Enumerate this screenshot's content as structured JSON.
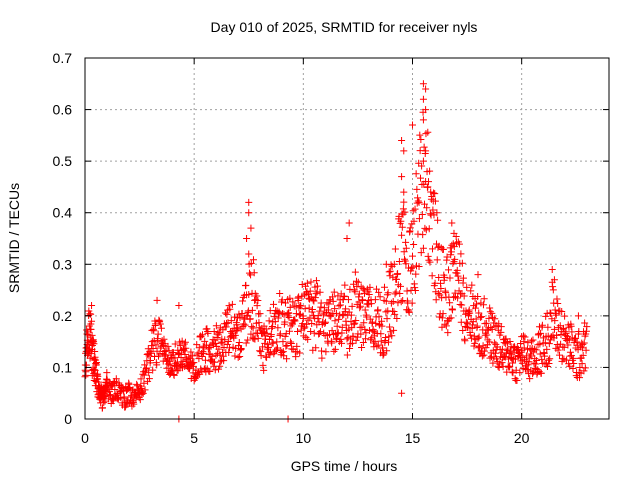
{
  "chart_data": {
    "type": "scatter",
    "title": "Day 010 of 2025, SRMTID for receiver nyls",
    "xlabel": "GPS time / hours",
    "ylabel": "SRMTID / TECUs",
    "xlim": [
      0,
      24
    ],
    "ylim": [
      0,
      0.7
    ],
    "x_ticks": [
      0,
      5,
      10,
      15,
      20
    ],
    "x_tick_labels": [
      "0",
      "5",
      "10",
      "15",
      "20"
    ],
    "y_ticks": [
      0,
      0.1,
      0.2,
      0.3,
      0.4,
      0.5,
      0.6,
      0.7
    ],
    "y_tick_labels": [
      "0",
      "0.1",
      "0.2",
      "0.3",
      "0.4",
      "0.5",
      "0.6",
      "0.7"
    ],
    "grid": true,
    "marker": "+",
    "marker_color": "#ff0000",
    "series": [
      {
        "name": "SRMTID",
        "note": "representative samples of the dense point cloud, read from the plot envelope",
        "x": [
          0.0,
          0.1,
          0.2,
          0.3,
          0.4,
          0.5,
          0.6,
          0.7,
          0.8,
          0.9,
          1.0,
          1.2,
          1.4,
          1.6,
          1.8,
          2.0,
          2.2,
          2.4,
          2.6,
          2.8,
          3.0,
          3.2,
          3.4,
          3.6,
          3.8,
          4.0,
          4.2,
          4.4,
          4.6,
          4.8,
          5.0,
          5.2,
          5.4,
          5.6,
          5.8,
          6.0,
          6.2,
          6.4,
          6.6,
          6.8,
          7.0,
          7.2,
          7.4,
          7.6,
          7.8,
          8.0,
          8.2,
          8.4,
          8.6,
          8.8,
          9.0,
          9.2,
          9.4,
          9.6,
          9.8,
          10.0,
          10.2,
          10.4,
          10.6,
          10.8,
          11.0,
          11.2,
          11.4,
          11.6,
          11.8,
          12.0,
          12.2,
          12.4,
          12.6,
          12.8,
          13.0,
          13.2,
          13.4,
          13.6,
          13.8,
          14.0,
          14.2,
          14.4,
          14.6,
          14.8,
          15.0,
          15.2,
          15.4,
          15.6,
          15.8,
          16.0,
          16.2,
          16.4,
          16.6,
          16.8,
          17.0,
          17.2,
          17.4,
          17.6,
          17.8,
          18.0,
          18.2,
          18.4,
          18.6,
          18.8,
          19.0,
          19.2,
          19.4,
          19.6,
          19.8,
          20.0,
          20.2,
          20.4,
          20.6,
          20.8,
          21.0,
          21.2,
          21.4,
          21.6,
          21.8,
          22.0,
          22.2,
          22.4,
          22.6,
          22.8
        ],
        "y": [
          0.1,
          0.15,
          0.18,
          0.14,
          0.12,
          0.1,
          0.06,
          0.05,
          0.04,
          0.05,
          0.06,
          0.05,
          0.06,
          0.05,
          0.04,
          0.05,
          0.04,
          0.05,
          0.06,
          0.09,
          0.12,
          0.15,
          0.16,
          0.14,
          0.12,
          0.11,
          0.12,
          0.13,
          0.12,
          0.11,
          0.1,
          0.12,
          0.13,
          0.14,
          0.12,
          0.13,
          0.15,
          0.16,
          0.17,
          0.18,
          0.15,
          0.17,
          0.2,
          0.25,
          0.22,
          0.16,
          0.14,
          0.15,
          0.17,
          0.19,
          0.18,
          0.17,
          0.19,
          0.16,
          0.18,
          0.2,
          0.22,
          0.19,
          0.21,
          0.18,
          0.16,
          0.18,
          0.19,
          0.2,
          0.21,
          0.18,
          0.2,
          0.22,
          0.2,
          0.19,
          0.21,
          0.2,
          0.19,
          0.18,
          0.2,
          0.22,
          0.25,
          0.3,
          0.35,
          0.28,
          0.3,
          0.38,
          0.45,
          0.5,
          0.4,
          0.35,
          0.28,
          0.25,
          0.24,
          0.27,
          0.3,
          0.26,
          0.22,
          0.21,
          0.2,
          0.18,
          0.17,
          0.18,
          0.16,
          0.15,
          0.14,
          0.12,
          0.13,
          0.12,
          0.11,
          0.13,
          0.12,
          0.11,
          0.12,
          0.13,
          0.14,
          0.16,
          0.2,
          0.18,
          0.17,
          0.15,
          0.14,
          0.13,
          0.12,
          0.14
        ],
        "spread": [
          0.03,
          0.04,
          0.05,
          0.05,
          0.05,
          0.04,
          0.02,
          0.02,
          0.02,
          0.02,
          0.02,
          0.02,
          0.02,
          0.02,
          0.02,
          0.02,
          0.02,
          0.02,
          0.02,
          0.03,
          0.04,
          0.05,
          0.05,
          0.04,
          0.03,
          0.03,
          0.03,
          0.04,
          0.03,
          0.03,
          0.03,
          0.04,
          0.04,
          0.05,
          0.04,
          0.05,
          0.05,
          0.05,
          0.05,
          0.05,
          0.05,
          0.06,
          0.07,
          0.09,
          0.07,
          0.05,
          0.05,
          0.05,
          0.06,
          0.06,
          0.06,
          0.06,
          0.06,
          0.06,
          0.06,
          0.07,
          0.07,
          0.07,
          0.07,
          0.06,
          0.06,
          0.06,
          0.06,
          0.06,
          0.07,
          0.06,
          0.06,
          0.07,
          0.06,
          0.06,
          0.06,
          0.06,
          0.06,
          0.06,
          0.07,
          0.08,
          0.09,
          0.1,
          0.12,
          0.1,
          0.1,
          0.12,
          0.14,
          0.15,
          0.12,
          0.1,
          0.09,
          0.08,
          0.08,
          0.08,
          0.08,
          0.07,
          0.07,
          0.06,
          0.06,
          0.06,
          0.06,
          0.06,
          0.05,
          0.05,
          0.05,
          0.04,
          0.04,
          0.04,
          0.04,
          0.04,
          0.04,
          0.04,
          0.04,
          0.05,
          0.05,
          0.06,
          0.07,
          0.06,
          0.06,
          0.05,
          0.05,
          0.05,
          0.05,
          0.05
        ]
      }
    ],
    "outliers": [
      {
        "x": 0.3,
        "y": 0.22
      },
      {
        "x": 1.0,
        "y": 0.09
      },
      {
        "x": 3.3,
        "y": 0.23
      },
      {
        "x": 4.3,
        "y": 0.22
      },
      {
        "x": 4.3,
        "y": 0.0
      },
      {
        "x": 9.3,
        "y": 0.0
      },
      {
        "x": 7.5,
        "y": 0.42
      },
      {
        "x": 7.5,
        "y": 0.4
      },
      {
        "x": 7.6,
        "y": 0.37
      },
      {
        "x": 7.4,
        "y": 0.35
      },
      {
        "x": 7.5,
        "y": 0.32
      },
      {
        "x": 12.0,
        "y": 0.35
      },
      {
        "x": 12.1,
        "y": 0.38
      },
      {
        "x": 13.8,
        "y": 0.3
      },
      {
        "x": 14.5,
        "y": 0.05
      },
      {
        "x": 14.5,
        "y": 0.54
      },
      {
        "x": 14.6,
        "y": 0.52
      },
      {
        "x": 14.5,
        "y": 0.47
      },
      {
        "x": 14.6,
        "y": 0.44
      },
      {
        "x": 15.0,
        "y": 0.57
      },
      {
        "x": 15.5,
        "y": 0.65
      },
      {
        "x": 15.6,
        "y": 0.64
      },
      {
        "x": 15.5,
        "y": 0.62
      },
      {
        "x": 15.6,
        "y": 0.6
      },
      {
        "x": 15.5,
        "y": 0.58
      },
      {
        "x": 15.6,
        "y": 0.52
      },
      {
        "x": 15.5,
        "y": 0.5
      },
      {
        "x": 15.7,
        "y": 0.45
      },
      {
        "x": 15.3,
        "y": 0.42
      },
      {
        "x": 16.8,
        "y": 0.38
      },
      {
        "x": 16.9,
        "y": 0.36
      },
      {
        "x": 18.0,
        "y": 0.28
      },
      {
        "x": 21.4,
        "y": 0.29
      },
      {
        "x": 21.5,
        "y": 0.27
      },
      {
        "x": 22.6,
        "y": 0.2
      }
    ]
  }
}
